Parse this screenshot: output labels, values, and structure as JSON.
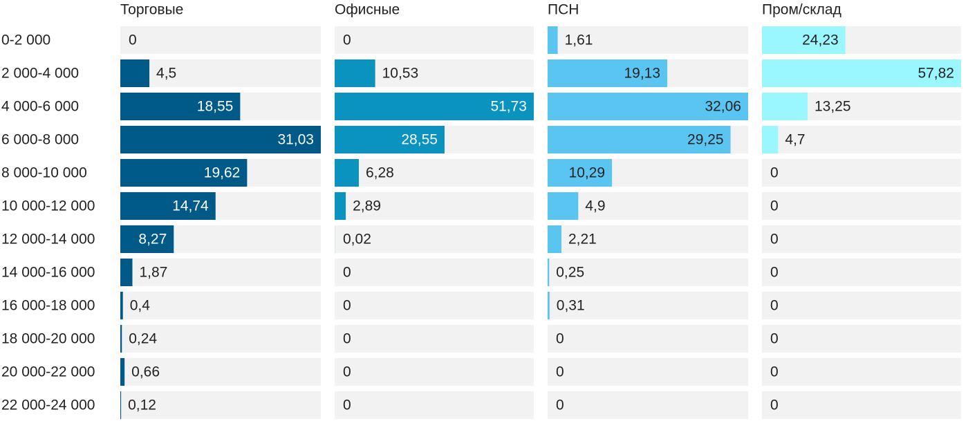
{
  "chart_data": {
    "type": "bar",
    "orientation": "horizontal",
    "categories": [
      "0-2 000",
      "2 000-4 000",
      "4 000-6 000",
      "6 000-8 000",
      "8 000-10 000",
      "10 000-12 000",
      "12 000-14 000",
      "14 000-16 000",
      "16 000-18 000",
      "18 000-20 000",
      "20 000-22 000",
      "22 000-24 000"
    ],
    "series": [
      {
        "name": "Торговые",
        "color": "#005a87",
        "values": [
          0,
          4.5,
          18.55,
          31.03,
          19.62,
          14.74,
          8.27,
          1.87,
          0.4,
          0.24,
          0.66,
          0.12
        ],
        "value_labels": [
          "0",
          "4,5",
          "18,55",
          "31,03",
          "19,62",
          "14,74",
          "8,27",
          "1,87",
          "0,4",
          "0,24",
          "0,66",
          "0,12"
        ]
      },
      {
        "name": "Офисные",
        "color": "#0a93be",
        "values": [
          0,
          10.53,
          51.73,
          28.55,
          6.28,
          2.89,
          0.02,
          0,
          0,
          0,
          0,
          0
        ],
        "value_labels": [
          "0",
          "10,53",
          "51,73",
          "28,55",
          "6,28",
          "2,89",
          "0,02",
          "0",
          "0",
          "0",
          "0",
          "0"
        ]
      },
      {
        "name": "ПСН",
        "color": "#5bc5f2",
        "values": [
          1.61,
          19.13,
          32.06,
          29.25,
          10.29,
          4.9,
          2.21,
          0.25,
          0.31,
          0,
          0,
          0
        ],
        "value_labels": [
          "1,61",
          "19,13",
          "32,06",
          "29,25",
          "10,29",
          "4,9",
          "2,21",
          "0,25",
          "0,31",
          "0",
          "0",
          "0"
        ]
      },
      {
        "name": "Пром/склад",
        "color": "#9af6ff",
        "values": [
          24.23,
          57.82,
          13.25,
          4.7,
          0,
          0,
          0,
          0,
          0,
          0,
          0,
          0
        ],
        "value_labels": [
          "24,23",
          "57,82",
          "13,25",
          "4,7",
          "0",
          "0",
          "0",
          "0",
          "0",
          "0",
          "0",
          "0"
        ]
      }
    ]
  }
}
